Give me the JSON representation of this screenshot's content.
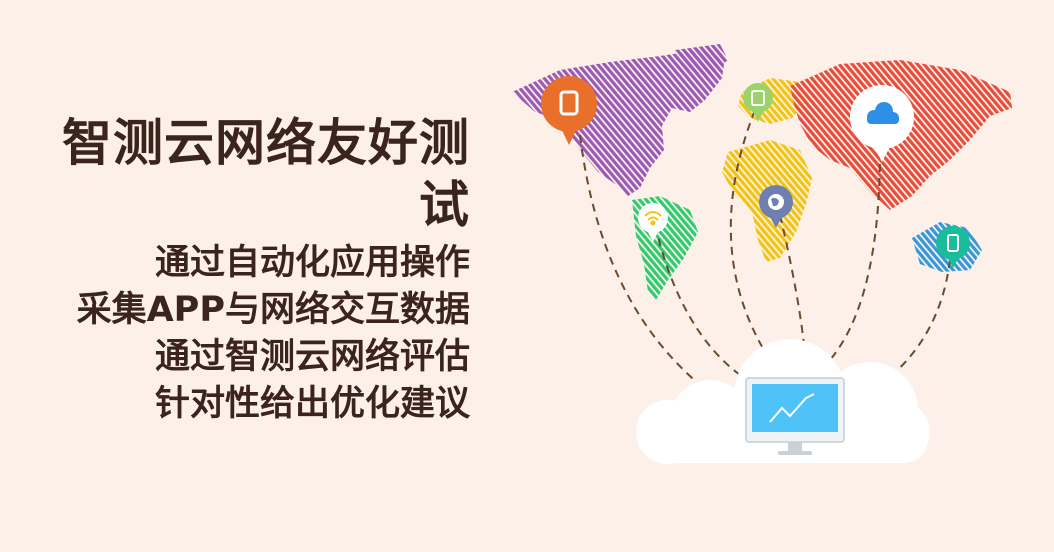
{
  "banner": {
    "title": "智测云网络友好测试",
    "lines": [
      "通过自动化应用操作",
      "采集APP与网络交互数据",
      "通过智测云网络评估",
      "针对性给出优化建议"
    ]
  },
  "colors": {
    "background": "#fdf0e8",
    "text": "#3a241c",
    "north_america": "#9b59b6",
    "south_america": "#2ecc71",
    "europe": "#f1c40f",
    "africa": "#f1c40f",
    "asia": "#e74c3c",
    "australia": "#3498db",
    "pin_orange": "#e8702a",
    "pin_green": "#9bd36b",
    "pin_white": "#ffffff",
    "pin_slate": "#6f7fb0",
    "pin_teal": "#1abc9c",
    "cloud": "#ffffff",
    "monitor": "#4fc3f7",
    "dash": "#6b4a2e"
  },
  "icons": [
    "tablet-icon",
    "wifi-icon",
    "tablet-icon-small",
    "globe-icon",
    "cloud-icon",
    "phone-icon",
    "monitor-icon"
  ]
}
